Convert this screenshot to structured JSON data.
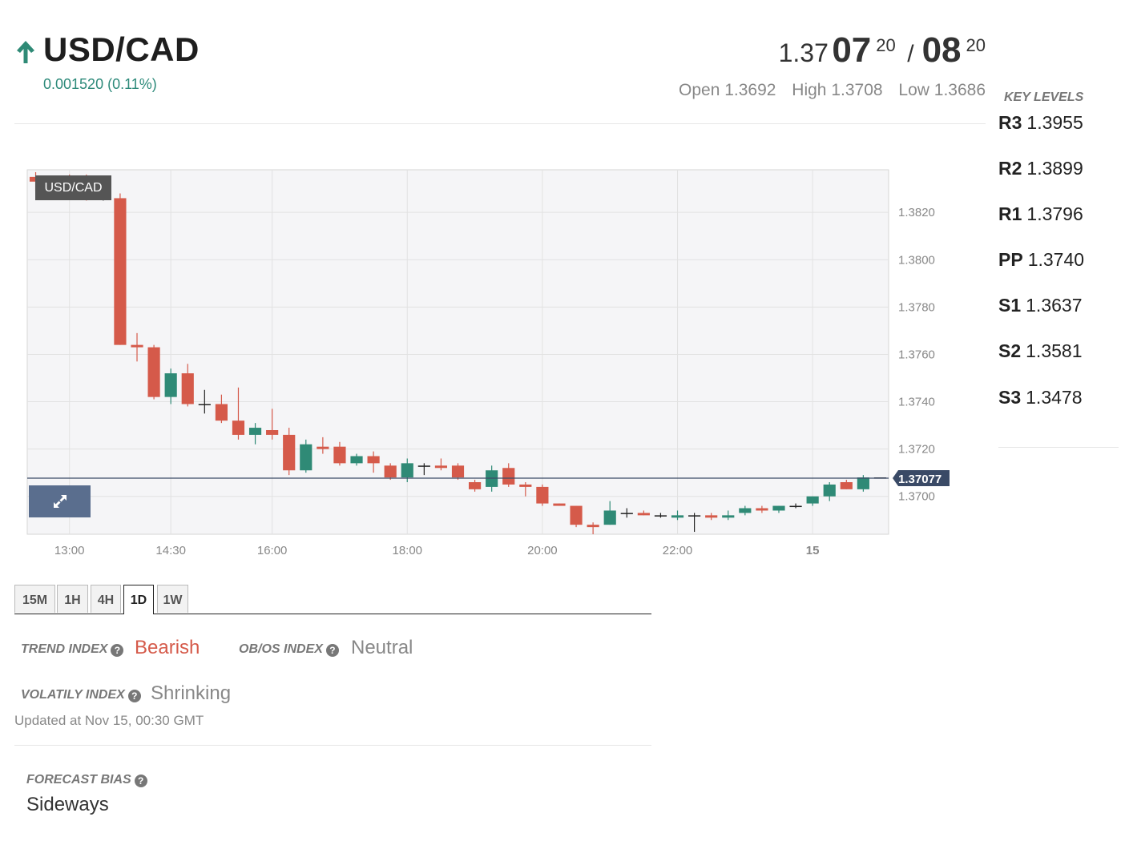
{
  "header": {
    "pair": "USD/CAD",
    "change": "0.001520 (0.11%)",
    "bid_prefix": "1.37",
    "bid_big": "07",
    "bid_sup": "20",
    "separator": "/",
    "ask_big": "08",
    "ask_sup": "20",
    "open": "Open 1.3692",
    "high": "High 1.3708",
    "low": "Low 1.3686"
  },
  "key_levels": {
    "title": "KEY LEVELS",
    "items": [
      {
        "name": "R3",
        "value": "1.3955"
      },
      {
        "name": "R2",
        "value": "1.3899"
      },
      {
        "name": "R1",
        "value": "1.3796"
      },
      {
        "name": "PP",
        "value": "1.3740"
      },
      {
        "name": "S1",
        "value": "1.3637"
      },
      {
        "name": "S2",
        "value": "1.3581"
      },
      {
        "name": "S3",
        "value": "1.3478"
      }
    ]
  },
  "chart_data": {
    "type": "candlestick",
    "series_label": "USD/CAD",
    "last_price": "1.37077",
    "last_value": 1.37077,
    "ylim": [
      1.3684,
      1.3838
    ],
    "y_ticks": [
      "1.3820",
      "1.3800",
      "1.3780",
      "1.3760",
      "1.3740",
      "1.3720",
      "1.3700"
    ],
    "x_ticks": [
      {
        "label": "13:00",
        "index": 2
      },
      {
        "label": "14:30",
        "index": 8
      },
      {
        "label": "16:00",
        "index": 14
      },
      {
        "label": "18:00",
        "index": 22
      },
      {
        "label": "20:00",
        "index": 30
      },
      {
        "label": "22:00",
        "index": 38
      },
      {
        "label": "15",
        "index": 46,
        "bold": true
      }
    ],
    "candles": [
      {
        "o": 1.3835,
        "h": 1.3837,
        "l": 1.3829,
        "c": 1.3833
      },
      {
        "o": 1.3833,
        "h": 1.3835,
        "l": 1.3829,
        "c": 1.3834
      },
      {
        "o": 1.3834,
        "h": 1.3836,
        "l": 1.3829,
        "c": 1.3829
      },
      {
        "o": 1.3834,
        "h": 1.3836,
        "l": 1.3825,
        "c": 1.3829
      },
      {
        "o": 1.3829,
        "h": 1.3832,
        "l": 1.3825,
        "c": 1.3829
      },
      {
        "o": 1.3826,
        "h": 1.3828,
        "l": 1.3764,
        "c": 1.3764
      },
      {
        "o": 1.3764,
        "h": 1.3769,
        "l": 1.3757,
        "c": 1.3763
      },
      {
        "o": 1.3763,
        "h": 1.3764,
        "l": 1.3741,
        "c": 1.3742
      },
      {
        "o": 1.3742,
        "h": 1.3754,
        "l": 1.3739,
        "c": 1.3752
      },
      {
        "o": 1.3752,
        "h": 1.3756,
        "l": 1.3738,
        "c": 1.3739
      },
      {
        "o": 1.3739,
        "h": 1.3745,
        "l": 1.3735,
        "c": 1.3739
      },
      {
        "o": 1.3739,
        "h": 1.3743,
        "l": 1.3731,
        "c": 1.3732
      },
      {
        "o": 1.3732,
        "h": 1.3746,
        "l": 1.3724,
        "c": 1.3726
      },
      {
        "o": 1.3726,
        "h": 1.3731,
        "l": 1.3722,
        "c": 1.3729
      },
      {
        "o": 1.3728,
        "h": 1.3737,
        "l": 1.3724,
        "c": 1.3726
      },
      {
        "o": 1.3726,
        "h": 1.3729,
        "l": 1.3709,
        "c": 1.3711
      },
      {
        "o": 1.3711,
        "h": 1.3724,
        "l": 1.371,
        "c": 1.3722
      },
      {
        "o": 1.3721,
        "h": 1.3725,
        "l": 1.3718,
        "c": 1.372
      },
      {
        "o": 1.3721,
        "h": 1.3723,
        "l": 1.3713,
        "c": 1.3714
      },
      {
        "o": 1.3714,
        "h": 1.3718,
        "l": 1.3713,
        "c": 1.3717
      },
      {
        "o": 1.3717,
        "h": 1.3719,
        "l": 1.371,
        "c": 1.3714
      },
      {
        "o": 1.3713,
        "h": 1.3714,
        "l": 1.3707,
        "c": 1.3708
      },
      {
        "o": 1.3708,
        "h": 1.3716,
        "l": 1.3706,
        "c": 1.3714
      },
      {
        "o": 1.3713,
        "h": 1.3714,
        "l": 1.3709,
        "c": 1.3713
      },
      {
        "o": 1.3713,
        "h": 1.3716,
        "l": 1.3711,
        "c": 1.3712
      },
      {
        "o": 1.3713,
        "h": 1.3714,
        "l": 1.3707,
        "c": 1.3708
      },
      {
        "o": 1.3706,
        "h": 1.3707,
        "l": 1.3702,
        "c": 1.3703
      },
      {
        "o": 1.3704,
        "h": 1.3713,
        "l": 1.3702,
        "c": 1.3711
      },
      {
        "o": 1.3712,
        "h": 1.3714,
        "l": 1.3704,
        "c": 1.3705
      },
      {
        "o": 1.3705,
        "h": 1.3706,
        "l": 1.37,
        "c": 1.3704
      },
      {
        "o": 1.3704,
        "h": 1.3705,
        "l": 1.3696,
        "c": 1.3697
      },
      {
        "o": 1.3697,
        "h": 1.3697,
        "l": 1.3696,
        "c": 1.3696
      },
      {
        "o": 1.3696,
        "h": 1.3696,
        "l": 1.3687,
        "c": 1.3688
      },
      {
        "o": 1.3688,
        "h": 1.3689,
        "l": 1.3684,
        "c": 1.3687
      },
      {
        "o": 1.3688,
        "h": 1.3698,
        "l": 1.3688,
        "c": 1.3694
      },
      {
        "o": 1.3693,
        "h": 1.3695,
        "l": 1.3691,
        "c": 1.3693
      },
      {
        "o": 1.3693,
        "h": 1.3694,
        "l": 1.3692,
        "c": 1.3692
      },
      {
        "o": 1.3692,
        "h": 1.3693,
        "l": 1.3691,
        "c": 1.3692
      },
      {
        "o": 1.3691,
        "h": 1.3694,
        "l": 1.369,
        "c": 1.3692
      },
      {
        "o": 1.3692,
        "h": 1.3693,
        "l": 1.3685,
        "c": 1.3692
      },
      {
        "o": 1.3692,
        "h": 1.3693,
        "l": 1.369,
        "c": 1.3691
      },
      {
        "o": 1.3691,
        "h": 1.3694,
        "l": 1.369,
        "c": 1.3692
      },
      {
        "o": 1.3693,
        "h": 1.3696,
        "l": 1.3692,
        "c": 1.3695
      },
      {
        "o": 1.3695,
        "h": 1.3696,
        "l": 1.3693,
        "c": 1.3694
      },
      {
        "o": 1.3694,
        "h": 1.3696,
        "l": 1.3693,
        "c": 1.3696
      },
      {
        "o": 1.3696,
        "h": 1.3697,
        "l": 1.3695,
        "c": 1.3696
      },
      {
        "o": 1.3697,
        "h": 1.37,
        "l": 1.3696,
        "c": 1.37
      },
      {
        "o": 1.37,
        "h": 1.3706,
        "l": 1.3698,
        "c": 1.3705
      },
      {
        "o": 1.3706,
        "h": 1.3707,
        "l": 1.3703,
        "c": 1.3703
      },
      {
        "o": 1.3703,
        "h": 1.3709,
        "l": 1.3702,
        "c": 1.3708
      },
      {
        "o": 1.3708,
        "h": 1.3708,
        "l": 1.3708,
        "c": 1.3708
      }
    ],
    "colors": {
      "up": "#2f8a76",
      "down": "#d55a4a",
      "doji": "#222222",
      "last_line": "#3a4a66"
    }
  },
  "tabs": [
    {
      "label": "15M"
    },
    {
      "label": "1H"
    },
    {
      "label": "4H"
    },
    {
      "label": "1D",
      "active": true
    },
    {
      "label": "1W"
    }
  ],
  "indices": {
    "trend_label": "TREND INDEX",
    "trend_value": "Bearish",
    "obos_label": "OB/OS INDEX",
    "obos_value": "Neutral",
    "volatility_label": "VOLATILY INDEX",
    "volatility_value": "Shrinking",
    "updated": "Updated at Nov 15, 00:30 GMT"
  },
  "forecast": {
    "label": "FORECAST BIAS",
    "value": "Sideways"
  }
}
